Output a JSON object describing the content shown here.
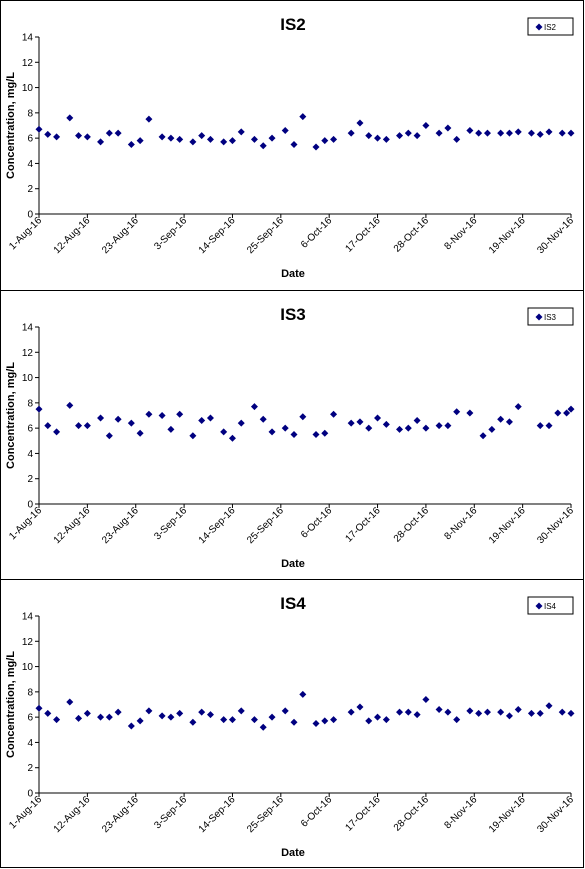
{
  "chart_data": [
    {
      "type": "scatter",
      "title": "IS2",
      "xlabel": "Date",
      "ylabel": "Concentration, mg/L",
      "ylim": [
        0,
        14
      ],
      "yticks": [
        "0",
        "2",
        "4",
        "6",
        "8",
        "10",
        "12",
        "14"
      ],
      "xlim": [
        "2016-08-01",
        "2016-11-30"
      ],
      "xticks": [
        "1-Aug-16",
        "12-Aug-16",
        "23-Aug-16",
        "3-Sep-16",
        "14-Sep-16",
        "25-Sep-16",
        "6-Oct-16",
        "17-Oct-16",
        "28-Oct-16",
        "8-Nov-16",
        "19-Nov-16",
        "30-Nov-16"
      ],
      "legend": "top-right",
      "grid": false,
      "color": "#000080",
      "series": [
        {
          "name": "IS2",
          "x": [
            "2016-08-01",
            "2016-08-03",
            "2016-08-05",
            "2016-08-08",
            "2016-08-10",
            "2016-08-12",
            "2016-08-15",
            "2016-08-17",
            "2016-08-19",
            "2016-08-22",
            "2016-08-24",
            "2016-08-26",
            "2016-08-29",
            "2016-08-31",
            "2016-09-02",
            "2016-09-05",
            "2016-09-07",
            "2016-09-09",
            "2016-09-12",
            "2016-09-14",
            "2016-09-16",
            "2016-09-19",
            "2016-09-21",
            "2016-09-23",
            "2016-09-26",
            "2016-09-28",
            "2016-09-30",
            "2016-10-03",
            "2016-10-05",
            "2016-10-07",
            "2016-10-11",
            "2016-10-13",
            "2016-10-15",
            "2016-10-17",
            "2016-10-19",
            "2016-10-22",
            "2016-10-24",
            "2016-10-26",
            "2016-10-28",
            "2016-10-31",
            "2016-11-02",
            "2016-11-04",
            "2016-11-07",
            "2016-11-09",
            "2016-11-11",
            "2016-11-14",
            "2016-11-16",
            "2016-11-18",
            "2016-11-21",
            "2016-11-23",
            "2016-11-25",
            "2016-11-28",
            "2016-11-30"
          ],
          "y": [
            6.7,
            6.3,
            6.1,
            7.6,
            6.2,
            6.1,
            5.7,
            6.4,
            6.4,
            5.5,
            5.8,
            7.5,
            6.1,
            6.0,
            5.9,
            5.7,
            6.2,
            5.9,
            5.7,
            5.8,
            6.5,
            5.9,
            5.4,
            6.0,
            6.6,
            5.5,
            7.7,
            5.3,
            5.8,
            5.9,
            6.4,
            7.2,
            6.2,
            6.0,
            5.9,
            6.2,
            6.4,
            6.2,
            7.0,
            6.4,
            6.8,
            5.9,
            6.6,
            6.4,
            6.4,
            6.4,
            6.4,
            6.5,
            6.4,
            6.3,
            6.5,
            6.4,
            6.4
          ]
        }
      ]
    },
    {
      "type": "scatter",
      "title": "IS3",
      "xlabel": "Date",
      "ylabel": "Concentration, mg/L",
      "ylim": [
        0,
        14
      ],
      "yticks": [
        "0",
        "2",
        "4",
        "6",
        "8",
        "10",
        "12",
        "14"
      ],
      "xlim": [
        "2016-08-01",
        "2016-11-30"
      ],
      "xticks": [
        "1-Aug-16",
        "12-Aug-16",
        "23-Aug-16",
        "3-Sep-16",
        "14-Sep-16",
        "25-Sep-16",
        "6-Oct-16",
        "17-Oct-16",
        "28-Oct-16",
        "8-Nov-16",
        "19-Nov-16",
        "30-Nov-16"
      ],
      "legend": "top-right",
      "grid": false,
      "color": "#000080",
      "series": [
        {
          "name": "IS3",
          "x": [
            "2016-08-01",
            "2016-08-03",
            "2016-08-05",
            "2016-08-08",
            "2016-08-10",
            "2016-08-12",
            "2016-08-15",
            "2016-08-17",
            "2016-08-19",
            "2016-08-22",
            "2016-08-24",
            "2016-08-26",
            "2016-08-29",
            "2016-08-31",
            "2016-09-02",
            "2016-09-05",
            "2016-09-07",
            "2016-09-09",
            "2016-09-12",
            "2016-09-14",
            "2016-09-16",
            "2016-09-19",
            "2016-09-21",
            "2016-09-23",
            "2016-09-26",
            "2016-09-28",
            "2016-09-30",
            "2016-10-03",
            "2016-10-05",
            "2016-10-07",
            "2016-10-11",
            "2016-10-13",
            "2016-10-15",
            "2016-10-17",
            "2016-10-19",
            "2016-10-22",
            "2016-10-24",
            "2016-10-26",
            "2016-10-28",
            "2016-10-31",
            "2016-11-02",
            "2016-11-04",
            "2016-11-07",
            "2016-11-10",
            "2016-11-12",
            "2016-11-14",
            "2016-11-16",
            "2016-11-18",
            "2016-11-23",
            "2016-11-25",
            "2016-11-27",
            "2016-11-29",
            "2016-11-30"
          ],
          "y": [
            7.5,
            6.2,
            5.7,
            7.8,
            6.2,
            6.2,
            6.8,
            5.4,
            6.7,
            6.4,
            5.6,
            7.1,
            7.0,
            5.9,
            7.1,
            5.4,
            6.6,
            6.8,
            5.7,
            5.2,
            6.4,
            7.7,
            6.7,
            5.7,
            6.0,
            5.5,
            6.9,
            5.5,
            5.6,
            7.1,
            6.4,
            6.5,
            6.0,
            6.8,
            6.3,
            5.9,
            6.0,
            6.6,
            6.0,
            6.2,
            6.2,
            7.3,
            7.2,
            5.4,
            5.9,
            6.7,
            6.5,
            7.7,
            6.2,
            6.2,
            7.2,
            7.2,
            7.5
          ]
        }
      ]
    },
    {
      "type": "scatter",
      "title": "IS4",
      "xlabel": "Date",
      "ylabel": "Concentration, mg/L",
      "ylim": [
        0,
        14
      ],
      "yticks": [
        "0",
        "2",
        "4",
        "6",
        "8",
        "10",
        "12",
        "14"
      ],
      "xlim": [
        "2016-08-01",
        "2016-11-30"
      ],
      "xticks": [
        "1-Aug-16",
        "12-Aug-16",
        "23-Aug-16",
        "3-Sep-16",
        "14-Sep-16",
        "25-Sep-16",
        "6-Oct-16",
        "17-Oct-16",
        "28-Oct-16",
        "8-Nov-16",
        "19-Nov-16",
        "30-Nov-16"
      ],
      "legend": "top-right",
      "grid": false,
      "color": "#000080",
      "series": [
        {
          "name": "IS4",
          "x": [
            "2016-08-01",
            "2016-08-03",
            "2016-08-05",
            "2016-08-08",
            "2016-08-10",
            "2016-08-12",
            "2016-08-15",
            "2016-08-17",
            "2016-08-19",
            "2016-08-22",
            "2016-08-24",
            "2016-08-26",
            "2016-08-29",
            "2016-08-31",
            "2016-09-02",
            "2016-09-05",
            "2016-09-07",
            "2016-09-09",
            "2016-09-12",
            "2016-09-14",
            "2016-09-16",
            "2016-09-19",
            "2016-09-21",
            "2016-09-23",
            "2016-09-26",
            "2016-09-28",
            "2016-09-30",
            "2016-10-03",
            "2016-10-05",
            "2016-10-07",
            "2016-10-11",
            "2016-10-13",
            "2016-10-15",
            "2016-10-17",
            "2016-10-19",
            "2016-10-22",
            "2016-10-24",
            "2016-10-26",
            "2016-10-28",
            "2016-10-31",
            "2016-11-02",
            "2016-11-04",
            "2016-11-07",
            "2016-11-09",
            "2016-11-11",
            "2016-11-14",
            "2016-11-16",
            "2016-11-18",
            "2016-11-21",
            "2016-11-23",
            "2016-11-25",
            "2016-11-28",
            "2016-11-30"
          ],
          "y": [
            6.7,
            6.3,
            5.8,
            7.2,
            5.9,
            6.3,
            6.0,
            6.0,
            6.4,
            5.3,
            5.7,
            6.5,
            6.1,
            6.0,
            6.3,
            5.6,
            6.4,
            6.2,
            5.8,
            5.8,
            6.5,
            5.8,
            5.2,
            6.0,
            6.5,
            5.6,
            7.8,
            5.5,
            5.7,
            5.8,
            6.4,
            6.8,
            5.7,
            6.0,
            5.8,
            6.4,
            6.4,
            6.2,
            7.4,
            6.6,
            6.4,
            5.8,
            6.5,
            6.3,
            6.4,
            6.4,
            6.1,
            6.6,
            6.3,
            6.3,
            6.9,
            6.4,
            6.3
          ]
        }
      ]
    }
  ]
}
